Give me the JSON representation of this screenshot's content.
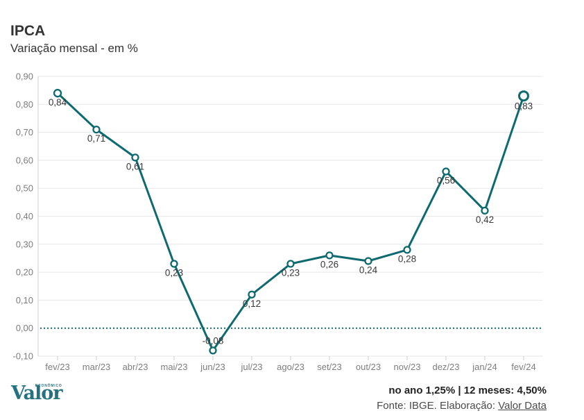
{
  "header": {
    "title": "IPCA",
    "subtitle": "Variação mensal - em %"
  },
  "chart_data": {
    "type": "line",
    "title": "IPCA",
    "subtitle": "Variação mensal - em %",
    "categories": [
      "fev/23",
      "mar/23",
      "abr/23",
      "mai/23",
      "jun/23",
      "jul/23",
      "ago/23",
      "set/23",
      "out/23",
      "nov/23",
      "dez/23",
      "jan/24",
      "fev/24"
    ],
    "values": [
      0.84,
      0.71,
      0.61,
      0.23,
      -0.08,
      0.12,
      0.23,
      0.26,
      0.24,
      0.28,
      0.56,
      0.42,
      0.83
    ],
    "point_labels": [
      "0,84",
      "0,71",
      "0,61",
      "0,23",
      "-0,08",
      "0,12",
      "0,23",
      "0,26",
      "0,24",
      "0,28",
      "0,56",
      "0,42",
      "0,83"
    ],
    "y_ticks": [
      "0,90",
      "0,80",
      "0,70",
      "0,60",
      "0,50",
      "0,40",
      "0,30",
      "0,20",
      "0,10",
      "0,00",
      "-0,10"
    ],
    "ylim": [
      -0.1,
      0.9
    ],
    "grid": true,
    "zero_line_style": "dotted",
    "line_color": "#0e6a6e",
    "marker_fill": "#ffffff",
    "grid_color": "#e7e7e7",
    "axis_color": "#cfcfcf",
    "legend": "none"
  },
  "footer": {
    "logo_text": "Valor",
    "logo_sub": "ECONÔMICO",
    "summary": "no ano 1,25% | 12 meses: 4,50%",
    "source_prefix": "Fonte: IBGE. Elaboração: ",
    "source_link": "Valor Data"
  },
  "colors": {
    "accent_teal": "#0e6a6e",
    "brand_logo_teal": "#26717f",
    "text_dark": "#333333",
    "axis_label_gray": "#7d7d7d"
  }
}
